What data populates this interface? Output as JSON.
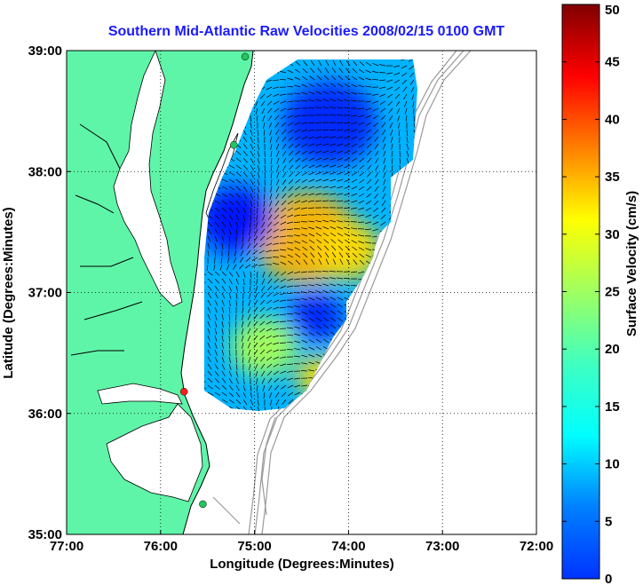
{
  "chart_data": {
    "type": "heatmap",
    "title": "Southern Mid-Atlantic Raw Velocities 2008/02/15 0100 GMT",
    "xlabel": "Longitude (Degrees:Minutes)",
    "ylabel": "Latitude (Degrees:Minutes)",
    "xlim": [
      -77,
      -72
    ],
    "ylim": [
      35,
      39
    ],
    "x_ticks": [
      {
        "v": -77,
        "label": "77:00"
      },
      {
        "v": -76,
        "label": "76:00"
      },
      {
        "v": -75,
        "label": "75:00"
      },
      {
        "v": -74,
        "label": "74:00"
      },
      {
        "v": -73,
        "label": "73:00"
      },
      {
        "v": -72,
        "label": "72:00"
      }
    ],
    "y_ticks": [
      {
        "v": 35,
        "label": "35:00"
      },
      {
        "v": 36,
        "label": "36:00"
      },
      {
        "v": 37,
        "label": "37:00"
      },
      {
        "v": 38,
        "label": "38:00"
      },
      {
        "v": 39,
        "label": "39:00"
      }
    ],
    "grid": true,
    "colorbar": {
      "label": "Surface Velocity (cm/s)",
      "range": [
        0,
        50
      ],
      "ticks": [
        "0",
        "5",
        "10",
        "15",
        "20",
        "25",
        "30",
        "35",
        "40",
        "45",
        "50"
      ],
      "colormap": "jet"
    },
    "velocity_regions": [
      {
        "lon": -74.45,
        "lat": 37.45,
        "value": 35,
        "spread": 0.55
      },
      {
        "lon": -74.0,
        "lat": 37.35,
        "value": 33,
        "spread": 0.35
      },
      {
        "lon": -74.3,
        "lat": 36.3,
        "value": 33,
        "spread": 0.25
      },
      {
        "lon": -74.9,
        "lat": 36.55,
        "value": 27,
        "spread": 0.35
      },
      {
        "lon": -74.35,
        "lat": 36.8,
        "value": 8,
        "spread": 0.3
      },
      {
        "lon": -75.2,
        "lat": 37.6,
        "value": 7,
        "spread": 0.4
      },
      {
        "lon": -74.2,
        "lat": 38.4,
        "value": 8,
        "spread": 0.5
      }
    ],
    "stations": [
      {
        "lon": -75.1,
        "lat": 38.95,
        "color": "#22c55e"
      },
      {
        "lon": -75.22,
        "lat": 38.22,
        "color": "#22c55e"
      },
      {
        "lon": -75.75,
        "lat": 36.18,
        "color": "#ff2020"
      },
      {
        "lon": -75.55,
        "lat": 35.25,
        "color": "#22c55e"
      }
    ]
  },
  "colors": {
    "land": "#5ff5a8",
    "background": "#ffffff",
    "isobath": "#9a9a9a",
    "vector": "#000000",
    "title": "#1a1aff"
  }
}
